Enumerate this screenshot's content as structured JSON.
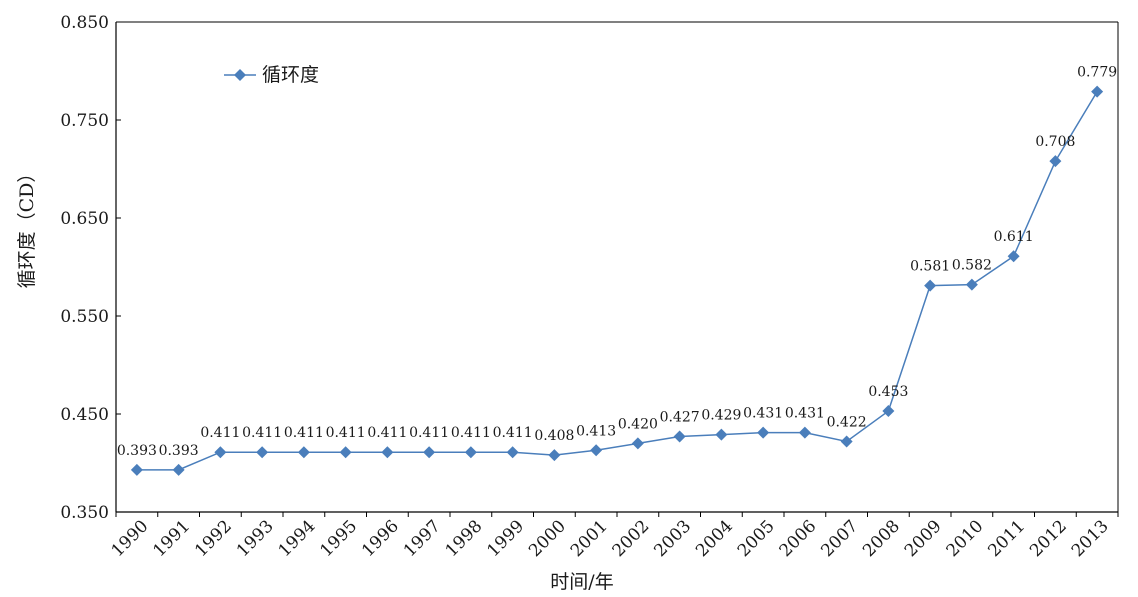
{
  "chart_data": {
    "type": "line",
    "title": "",
    "xlabel": "时间/年",
    "ylabel": "循环度（CD）",
    "ylim": [
      0.35,
      0.85
    ],
    "yticks": [
      "0.350",
      "0.450",
      "0.550",
      "0.650",
      "0.750",
      "0.850"
    ],
    "categories": [
      "1990",
      "1991",
      "1992",
      "1993",
      "1994",
      "1995",
      "1996",
      "1997",
      "1998",
      "1999",
      "2000",
      "2001",
      "2002",
      "2003",
      "2004",
      "2005",
      "2006",
      "2007",
      "2008",
      "2009",
      "2010",
      "2011",
      "2012",
      "2013"
    ],
    "series": [
      {
        "name": "循环度",
        "color": "#4a7ebb",
        "marker": "diamond",
        "values": [
          0.393,
          0.393,
          0.411,
          0.411,
          0.411,
          0.411,
          0.411,
          0.411,
          0.411,
          0.411,
          0.408,
          0.413,
          0.42,
          0.427,
          0.429,
          0.431,
          0.431,
          0.422,
          0.453,
          0.581,
          0.582,
          0.611,
          0.708,
          0.779
        ],
        "labels": [
          "0.393",
          "0.393",
          "0.411",
          "0.411",
          "0.411",
          "0.411",
          "0.411",
          "0.411",
          "0.411",
          "0.411",
          "0.408",
          "0.413",
          "0.420",
          "0.427",
          "0.429",
          "0.431",
          "0.431",
          "0.422",
          "0.453",
          "0.581",
          "0.582",
          "0.611",
          "0.708",
          "0.779"
        ]
      }
    ],
    "legend": "top-left",
    "grid": false
  }
}
